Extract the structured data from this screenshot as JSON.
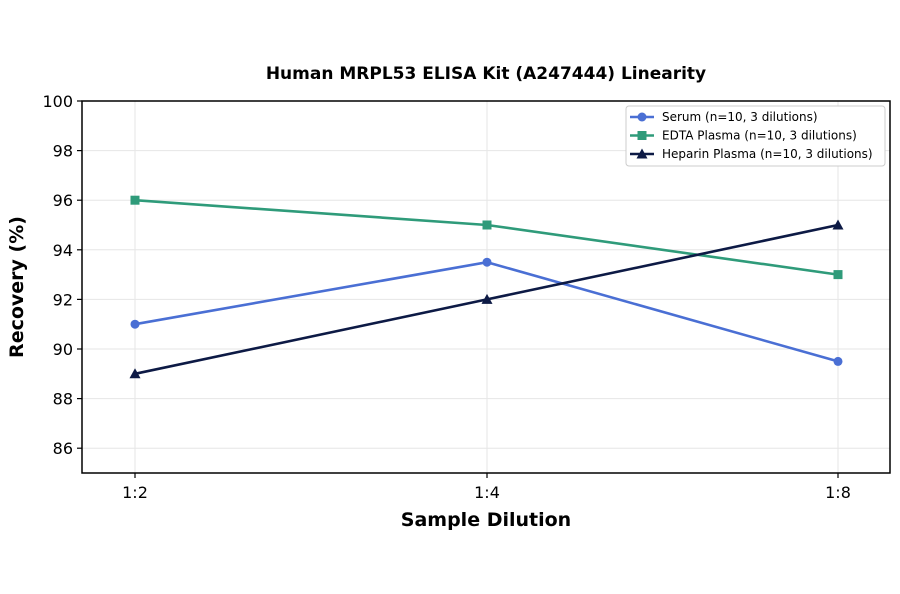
{
  "chart_data": {
    "type": "line",
    "title": "Human MRPL53 ELISA Kit (A247444) Linearity",
    "xlabel": "Sample Dilution",
    "ylabel": "Recovery (%)",
    "categories": [
      "1:2",
      "1:4",
      "1:8"
    ],
    "ylim": [
      85,
      100
    ],
    "yticks": [
      86,
      88,
      90,
      92,
      94,
      96,
      98,
      100
    ],
    "grid": true,
    "legend_position": "top-right",
    "series": [
      {
        "name": "Serum (n=10, 3 dilutions)",
        "values": [
          91,
          93.5,
          89.5
        ],
        "color": "#4a6fd4",
        "marker": "circle"
      },
      {
        "name": "EDTA Plasma (n=10, 3 dilutions)",
        "values": [
          96,
          95,
          93
        ],
        "color": "#2f9b7a",
        "marker": "square"
      },
      {
        "name": "Heparin Plasma (n=10, 3 dilutions)",
        "values": [
          89,
          92,
          95
        ],
        "color": "#0d1a45",
        "marker": "triangle"
      }
    ]
  }
}
